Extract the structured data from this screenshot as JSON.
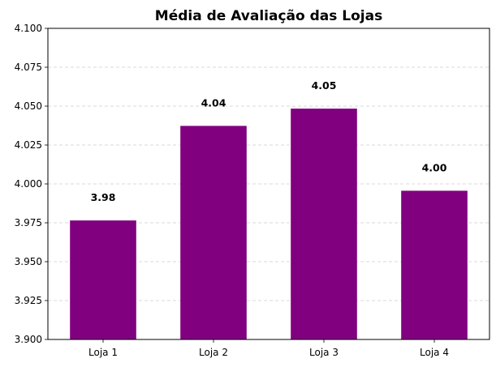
{
  "chart_data": {
    "type": "bar",
    "title": "Média de Avaliação das Lojas",
    "xlabel": "",
    "ylabel": "",
    "categories": [
      "Loja 1",
      "Loja 2",
      "Loja 3",
      "Loja 4"
    ],
    "values": [
      3.9765,
      4.0373,
      4.0484,
      3.9956
    ],
    "data_labels": [
      "3.98",
      "4.04",
      "4.05",
      "4.00"
    ],
    "ylim": [
      3.9,
      4.1
    ],
    "yticks": [
      "3.900",
      "3.925",
      "3.950",
      "3.975",
      "4.000",
      "4.025",
      "4.050",
      "4.075",
      "4.100"
    ],
    "grid": "y-dashed",
    "bar_color": "#800080"
  }
}
